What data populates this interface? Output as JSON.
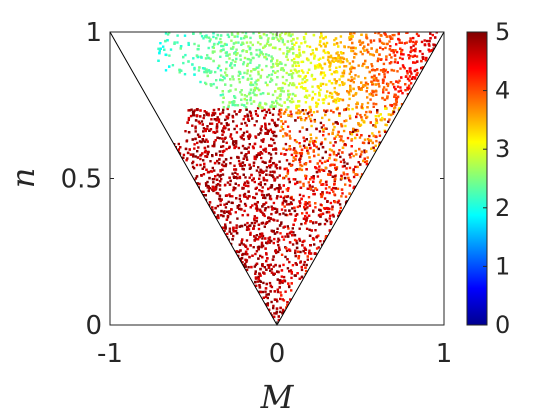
{
  "chart_data": {
    "type": "scatter",
    "title": "",
    "xlabel": "M",
    "ylabel": "n",
    "xlim": [
      -1,
      1
    ],
    "ylim": [
      0,
      1
    ],
    "x_ticks": [
      "-1",
      "0",
      "1"
    ],
    "y_ticks": [
      "0",
      "0.5",
      "1"
    ],
    "colorbar": {
      "range": [
        0,
        5
      ],
      "ticks": [
        "0",
        "1",
        "2",
        "3",
        "4",
        "5"
      ],
      "colormap": "jet"
    },
    "region_boundary": [
      [
        -1,
        1
      ],
      [
        0,
        0
      ],
      [
        1,
        1
      ]
    ],
    "grid": false,
    "legend": "none",
    "regions": [
      {
        "name": "top-left band",
        "x_range": [
          -0.7,
          0.25
        ],
        "y_range": [
          0.72,
          1.0
        ],
        "approx_value": 2.3
      },
      {
        "name": "top-center band",
        "x_range": [
          0.05,
          0.5
        ],
        "y_range": [
          0.75,
          1.0
        ],
        "approx_value": 3.2
      },
      {
        "name": "top-right band",
        "x_range": [
          0.45,
          1.0
        ],
        "y_range": [
          0.8,
          1.0
        ],
        "approx_value": 4.3
      },
      {
        "name": "left lobe",
        "x_range": [
          -0.65,
          0.05
        ],
        "y_range": [
          0.1,
          0.78
        ],
        "approx_value": 4.9
      },
      {
        "name": "right lobe",
        "x_range": [
          0.0,
          0.85
        ],
        "y_range": [
          0.05,
          0.85
        ],
        "approx_value": 4.3
      }
    ]
  }
}
